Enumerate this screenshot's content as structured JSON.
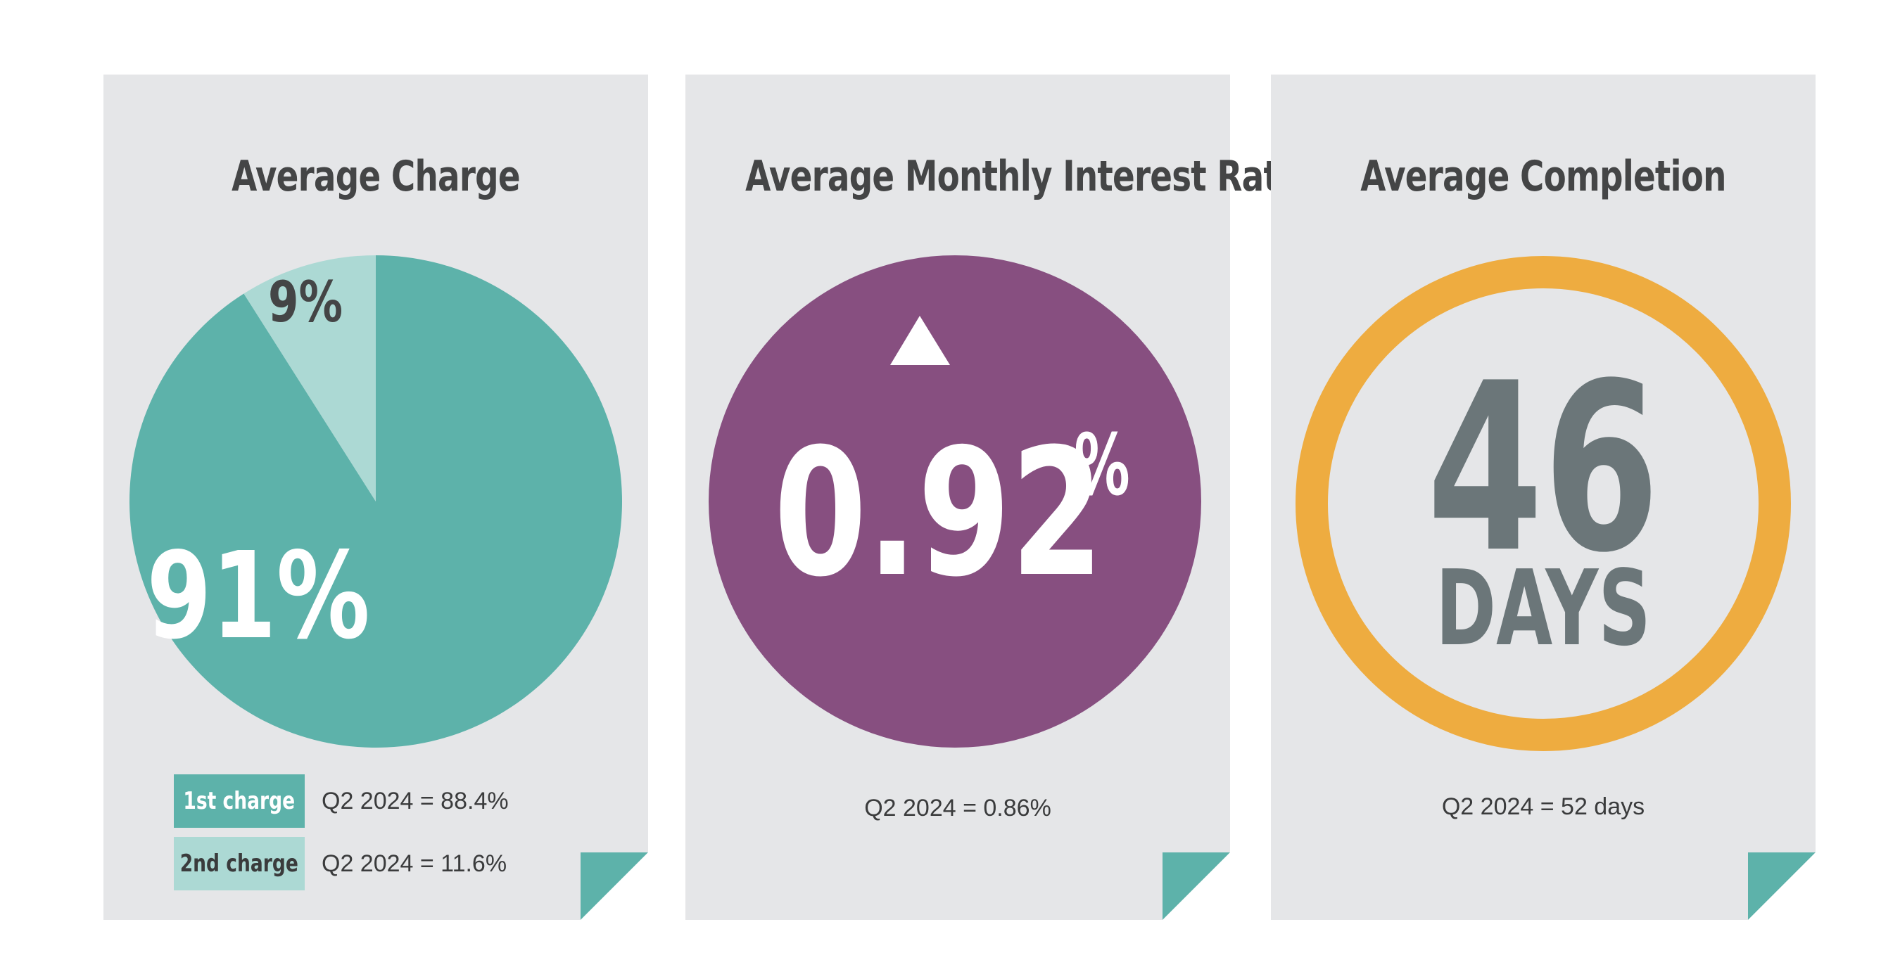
{
  "colors": {
    "card_bg": "#e5e6e8",
    "teal": "#5db2aa",
    "light_teal": "#acd9d4",
    "purple": "#874f80",
    "orange": "#eeac40",
    "days_gray": "#6b7679",
    "title_gray": "#444546",
    "text_dark": "#3a3b3c"
  },
  "cards": [
    {
      "title": "Average Charge",
      "legend": [
        {
          "label": "1st charge",
          "text": "Q2 2024 = 88.4%"
        },
        {
          "label": "2nd charge",
          "text": "Q2 2024 = 11.6%"
        }
      ]
    },
    {
      "title": "Average Monthly Interest Rate",
      "value": "0.92",
      "unit": "%",
      "trend_icon": "up-triangle-icon",
      "compare": "Q2 2024 = 0.86%"
    },
    {
      "title": "Average Completion",
      "value": "46",
      "unit": "DAYS",
      "compare": "Q2 2024 = 52 days"
    }
  ],
  "chart_data": {
    "type": "pie",
    "title": "Average Charge",
    "categories": [
      "1st charge",
      "2nd charge"
    ],
    "values": [
      91,
      9
    ],
    "labels": [
      "91%",
      "9%"
    ]
  }
}
